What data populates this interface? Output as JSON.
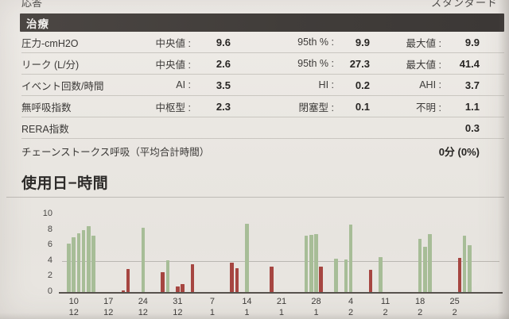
{
  "meta_row": {
    "left": "応答",
    "right": "スタンダード"
  },
  "treatment": {
    "header": "治療",
    "rows": [
      {
        "label": "圧力-cmH2O",
        "pairs": [
          {
            "k": "中央値 :",
            "v": "9.6"
          },
          {
            "k": "95th % :",
            "v": "9.9"
          },
          {
            "k": "最大値 :",
            "v": "9.9"
          }
        ]
      },
      {
        "label": "リーク (L/分)",
        "pairs": [
          {
            "k": "中央値 :",
            "v": "2.6"
          },
          {
            "k": "95th % :",
            "v": "27.3"
          },
          {
            "k": "最大値 :",
            "v": "41.4"
          }
        ]
      },
      {
        "label": "イベント回数/時間",
        "pairs": [
          {
            "k": "AI :",
            "v": "3.5"
          },
          {
            "k": "HI :",
            "v": "0.2"
          },
          {
            "k": "AHI :",
            "v": "3.7"
          }
        ]
      },
      {
        "label": "無呼吸指数",
        "pairs": [
          {
            "k": "中枢型 :",
            "v": "2.3"
          },
          {
            "k": "閉塞型 :",
            "v": "0.1"
          },
          {
            "k": "不明 :",
            "v": "1.1"
          }
        ]
      },
      {
        "label": "RERA指数",
        "single": "0.3"
      },
      {
        "label": "チェーンストークス呼吸（平均合計時間）",
        "single": "0分 (0%)"
      }
    ]
  },
  "usage": {
    "title": "使用日−時間"
  },
  "chart_data": {
    "type": "bar",
    "title": "使用日−時間",
    "xlabel": "",
    "ylabel": "",
    "ylim": [
      0,
      10
    ],
    "yticks": [
      0,
      2,
      4,
      6,
      8,
      10
    ],
    "gridline_y": 4,
    "grid": "single horizontal line at 4",
    "legend": "none",
    "colors": {
      "green": "#a7bd97",
      "red": "#a64641",
      "axis": "#57524d"
    },
    "x_tick_labels": [
      {
        "day": "10",
        "month": "12",
        "offset": 2
      },
      {
        "day": "17",
        "month": "12",
        "offset": 9
      },
      {
        "day": "24",
        "month": "12",
        "offset": 16
      },
      {
        "day": "31",
        "month": "12",
        "offset": 23
      },
      {
        "day": "7",
        "month": "1",
        "offset": 30
      },
      {
        "day": "14",
        "month": "1",
        "offset": 37
      },
      {
        "day": "21",
        "month": "1",
        "offset": 44
      },
      {
        "day": "28",
        "month": "1",
        "offset": 51
      },
      {
        "day": "4",
        "month": "2",
        "offset": 58
      },
      {
        "day": "11",
        "month": "2",
        "offset": 65
      },
      {
        "day": "18",
        "month": "2",
        "offset": 72
      },
      {
        "day": "25",
        "month": "2",
        "offset": 79
      }
    ],
    "bars": [
      {
        "date": "9/12",
        "offset": 1,
        "value": 6.2,
        "color": "green"
      },
      {
        "date": "10/12",
        "offset": 2,
        "value": 7.0,
        "color": "green"
      },
      {
        "date": "11/12",
        "offset": 3,
        "value": 7.6,
        "color": "green"
      },
      {
        "date": "12/12",
        "offset": 4,
        "value": 8.0,
        "color": "green"
      },
      {
        "date": "13/12",
        "offset": 5,
        "value": 8.5,
        "color": "green"
      },
      {
        "date": "14/12",
        "offset": 6,
        "value": 7.2,
        "color": "green"
      },
      {
        "date": "20/12",
        "offset": 12,
        "value": 0.2,
        "color": "red"
      },
      {
        "date": "21/12",
        "offset": 13,
        "value": 3.0,
        "color": "red"
      },
      {
        "date": "24/12",
        "offset": 16,
        "value": 8.3,
        "color": "green"
      },
      {
        "date": "28/12",
        "offset": 20,
        "value": 2.6,
        "color": "red"
      },
      {
        "date": "29/12",
        "offset": 21,
        "value": 4.1,
        "color": "green"
      },
      {
        "date": "31/12",
        "offset": 23,
        "value": 0.7,
        "color": "red"
      },
      {
        "date": "1/1",
        "offset": 24,
        "value": 1.0,
        "color": "red"
      },
      {
        "date": "3/1",
        "offset": 26,
        "value": 3.6,
        "color": "red"
      },
      {
        "date": "11/1",
        "offset": 34,
        "value": 3.8,
        "color": "red"
      },
      {
        "date": "12/1",
        "offset": 35,
        "value": 3.1,
        "color": "red"
      },
      {
        "date": "14/1",
        "offset": 37,
        "value": 8.8,
        "color": "green"
      },
      {
        "date": "19/1",
        "offset": 42,
        "value": 3.3,
        "color": "red"
      },
      {
        "date": "26/1",
        "offset": 49,
        "value": 7.2,
        "color": "green"
      },
      {
        "date": "27/1",
        "offset": 50,
        "value": 7.3,
        "color": "green"
      },
      {
        "date": "28/1",
        "offset": 51,
        "value": 7.4,
        "color": "green"
      },
      {
        "date": "29/1",
        "offset": 52,
        "value": 3.3,
        "color": "red"
      },
      {
        "date": "1/2",
        "offset": 55,
        "value": 4.3,
        "color": "green"
      },
      {
        "date": "3/2",
        "offset": 57,
        "value": 4.2,
        "color": "green"
      },
      {
        "date": "4/2",
        "offset": 58,
        "value": 8.7,
        "color": "green"
      },
      {
        "date": "8/2",
        "offset": 62,
        "value": 2.9,
        "color": "red"
      },
      {
        "date": "10/2",
        "offset": 64,
        "value": 4.5,
        "color": "green"
      },
      {
        "date": "18/2",
        "offset": 72,
        "value": 6.8,
        "color": "green"
      },
      {
        "date": "19/2",
        "offset": 73,
        "value": 5.8,
        "color": "green"
      },
      {
        "date": "20/2",
        "offset": 74,
        "value": 7.4,
        "color": "green"
      },
      {
        "date": "26/2",
        "offset": 80,
        "value": 4.4,
        "color": "red"
      },
      {
        "date": "27/2",
        "offset": 81,
        "value": 7.2,
        "color": "green"
      },
      {
        "date": "28/2",
        "offset": 82,
        "value": 6.0,
        "color": "green"
      }
    ]
  }
}
